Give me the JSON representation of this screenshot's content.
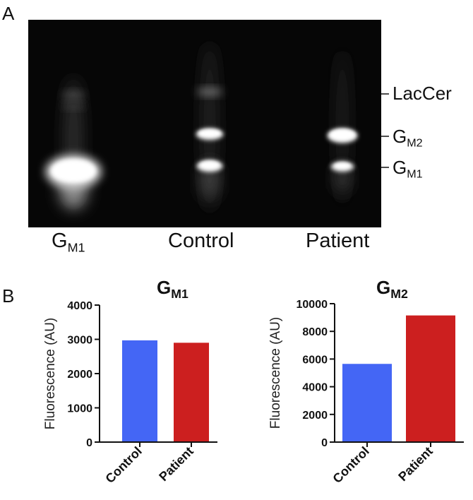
{
  "panel_a": {
    "letter": "A",
    "lanes": [
      {
        "base": "G",
        "sub": "M1"
      },
      {
        "base": "Control",
        "sub": ""
      },
      {
        "base": "Patient",
        "sub": ""
      }
    ],
    "bands": [
      {
        "base": "LacCer",
        "sub": ""
      },
      {
        "base": "G",
        "sub": "M2"
      },
      {
        "base": "G",
        "sub": "M1"
      }
    ]
  },
  "panel_b": {
    "letter": "B"
  },
  "chart_data": [
    {
      "type": "bar",
      "title": {
        "base": "G",
        "sub": "M1"
      },
      "ylabel": "Fluorescence (AU)",
      "xlabel": "",
      "categories": [
        "Control",
        "Patient"
      ],
      "values": [
        2970,
        2900
      ],
      "colors": [
        "#4466f5",
        "#cc1f1f"
      ],
      "ylim": [
        0,
        4000
      ],
      "yticks": [
        0,
        1000,
        2000,
        3000,
        4000
      ],
      "grid": false
    },
    {
      "type": "bar",
      "title": {
        "base": "G",
        "sub": "M2"
      },
      "ylabel": "Fluorescence (AU)",
      "xlabel": "",
      "categories": [
        "Control",
        "Patient"
      ],
      "values": [
        5650,
        9150
      ],
      "colors": [
        "#4466f5",
        "#cc1f1f"
      ],
      "ylim": [
        0,
        10000
      ],
      "yticks": [
        0,
        2000,
        4000,
        6000,
        8000,
        10000
      ],
      "grid": false
    }
  ]
}
